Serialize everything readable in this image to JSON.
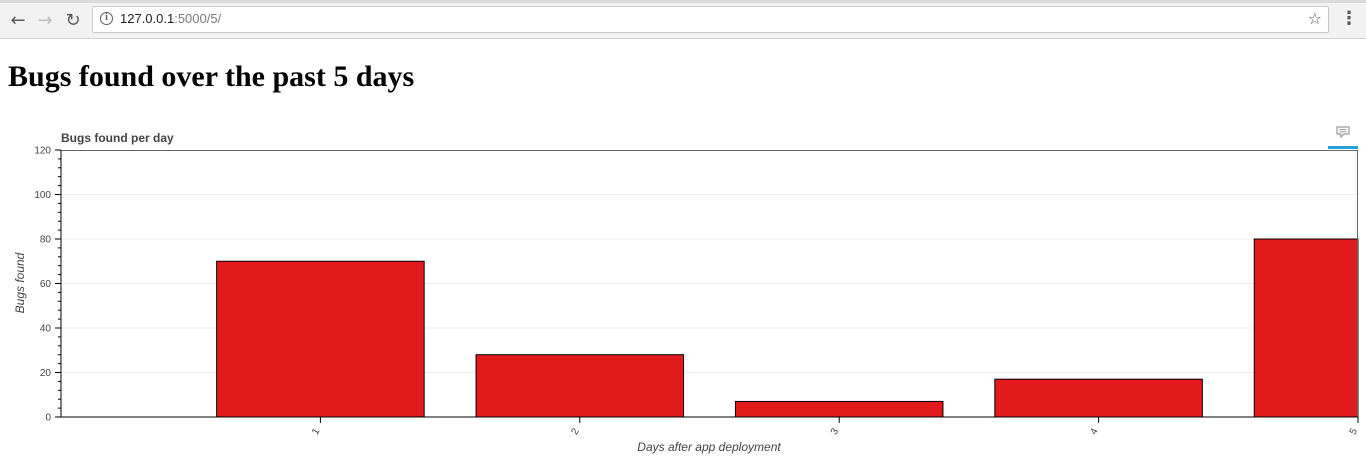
{
  "browser": {
    "back_icon": "back-arrow-icon",
    "forward_icon": "forward-arrow-icon",
    "reload_icon": "reload-icon",
    "url_host": "127.0.0.1",
    "url_path": ":5000/5/",
    "info_icon": "info-icon",
    "bookmark_icon": "star-icon",
    "menu_icon": "kebab-menu-icon"
  },
  "page": {
    "heading": "Bugs found over the past 5 days"
  },
  "chart_data": {
    "type": "bar",
    "title": "Bugs found per day",
    "xlabel": "Days after app deployment",
    "ylabel": "Bugs found",
    "categories": [
      "1",
      "2",
      "3",
      "4",
      "5"
    ],
    "values": [
      70,
      28,
      7,
      17,
      80
    ],
    "ylim": [
      0,
      120
    ],
    "yticks": [
      0,
      20,
      40,
      60,
      80,
      100,
      120
    ],
    "xtick_labels": [
      "1",
      "2",
      "3",
      "4",
      "5"
    ],
    "bar_color": "#e31a1c",
    "bar_outline": "#000000",
    "grid": true,
    "toolbar_icon": "comment-icon"
  }
}
